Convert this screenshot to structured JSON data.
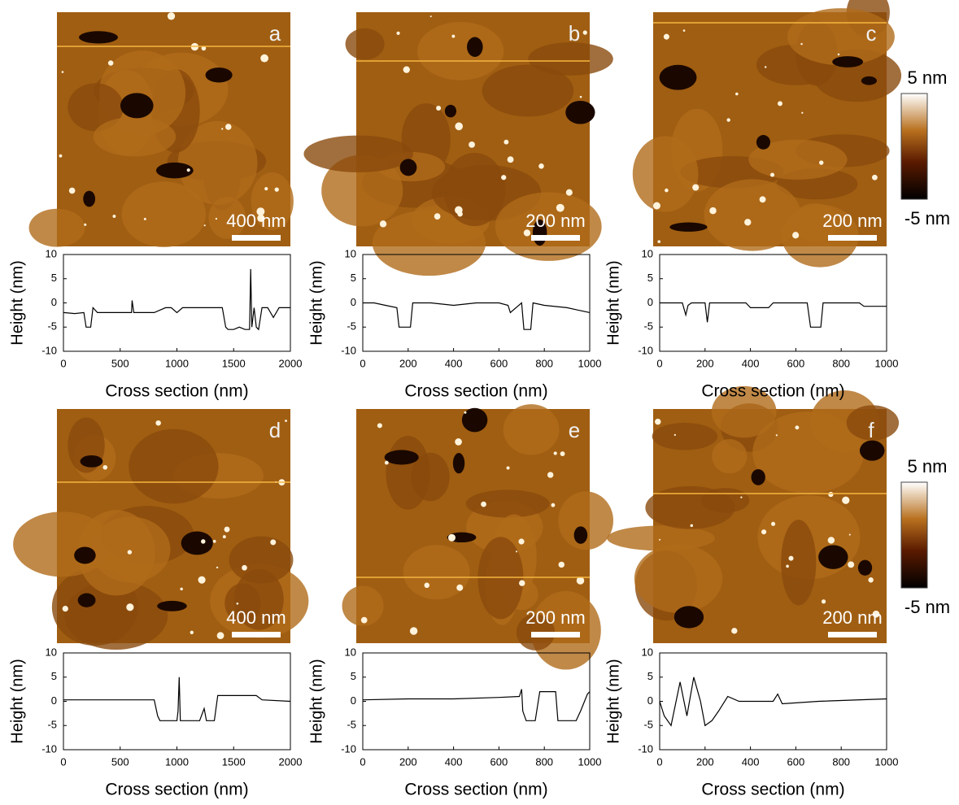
{
  "images": [
    {
      "label": "a",
      "scale_bar": "400 nm"
    },
    {
      "label": "b",
      "scale_bar": "200 nm"
    },
    {
      "label": "c",
      "scale_bar": "200 nm"
    },
    {
      "label": "d",
      "scale_bar": "400 nm"
    },
    {
      "label": "e",
      "scale_bar": "200 nm"
    },
    {
      "label": "f",
      "scale_bar": "200 nm"
    }
  ],
  "colorbars": [
    {
      "max_label": "5 nm",
      "min_label": "-5 nm"
    },
    {
      "max_label": "5 nm",
      "min_label": "-5 nm"
    }
  ],
  "chart_data": [
    {
      "type": "line",
      "xlabel": "Cross section (nm)",
      "ylabel": "Height (nm)",
      "xlim": [
        0,
        2000
      ],
      "ylim": [
        -10,
        10
      ],
      "xticks": [
        0,
        500,
        1000,
        1500,
        2000
      ],
      "yticks": [
        -10,
        -5,
        0,
        5,
        10
      ],
      "x": [
        0,
        100,
        180,
        200,
        240,
        260,
        300,
        500,
        600,
        605,
        620,
        800,
        900,
        950,
        1000,
        1050,
        1100,
        1200,
        1300,
        1400,
        1430,
        1450,
        1500,
        1550,
        1600,
        1640,
        1650,
        1660,
        1680,
        1700,
        1720,
        1750,
        1800,
        1850,
        1900,
        2000
      ],
      "series": [
        {
          "color": "#000000",
          "values": [
            -2,
            -2.2,
            -2,
            -5,
            -5,
            -1,
            -2,
            -2,
            -2,
            0.5,
            -2,
            -2,
            -1,
            -1,
            -2,
            -1,
            -1,
            -1,
            -1,
            -1,
            -5,
            -5.5,
            -5.5,
            -5,
            -5.5,
            -5.5,
            7,
            -5,
            -1,
            -5,
            -5.5,
            -1,
            -1,
            -3,
            -1,
            -1
          ]
        }
      ]
    },
    {
      "type": "line",
      "xlabel": "Cross section (nm)",
      "ylabel": "Height (nm)",
      "xlim": [
        0,
        1000
      ],
      "ylim": [
        -10,
        10
      ],
      "xticks": [
        0,
        200,
        400,
        600,
        800,
        1000
      ],
      "yticks": [
        -10,
        -5,
        0,
        5,
        10
      ],
      "x": [
        0,
        50,
        100,
        150,
        160,
        210,
        220,
        300,
        400,
        500,
        600,
        640,
        650,
        700,
        710,
        740,
        750,
        800,
        900,
        950,
        1000
      ],
      "series": [
        {
          "color": "#000000",
          "values": [
            0,
            0,
            -0.5,
            -1,
            -5,
            -5,
            0,
            0,
            -0.5,
            0,
            0,
            -0.5,
            -2,
            0,
            -5.5,
            -5.5,
            0,
            -0.5,
            -1,
            -1.5,
            -2
          ]
        }
      ]
    },
    {
      "type": "line",
      "xlabel": "Cross section (nm)",
      "ylabel": "Height (nm)",
      "xlim": [
        0,
        1000
      ],
      "ylim": [
        -10,
        10
      ],
      "xticks": [
        0,
        200,
        400,
        600,
        800,
        1000
      ],
      "yticks": [
        -10,
        -5,
        0,
        5,
        10
      ],
      "x": [
        0,
        100,
        115,
        125,
        140,
        200,
        210,
        220,
        300,
        380,
        400,
        480,
        500,
        600,
        650,
        665,
        710,
        720,
        800,
        880,
        900,
        1000
      ],
      "series": [
        {
          "color": "#000000",
          "values": [
            0,
            0,
            -2.5,
            -0.5,
            0,
            0,
            -4,
            0,
            0,
            0,
            -1,
            -1,
            0,
            0,
            0,
            -5,
            -5,
            0,
            0,
            0,
            -0.7,
            -0.7
          ]
        }
      ]
    },
    {
      "type": "line",
      "xlabel": "Cross section (nm)",
      "ylabel": "Height (nm)",
      "xlim": [
        0,
        2000
      ],
      "ylim": [
        -10,
        10
      ],
      "xticks": [
        0,
        500,
        1000,
        1500,
        2000
      ],
      "yticks": [
        -10,
        -5,
        0,
        5,
        10
      ],
      "x": [
        0,
        400,
        800,
        830,
        850,
        1000,
        1010,
        1020,
        1030,
        1050,
        1200,
        1240,
        1260,
        1300,
        1330,
        1360,
        1500,
        1700,
        1750,
        2000
      ],
      "series": [
        {
          "color": "#000000",
          "values": [
            0.3,
            0.3,
            0.3,
            -3,
            -4,
            -4,
            -2,
            5,
            -4,
            -4,
            -4,
            -1.5,
            -4,
            -4,
            -4,
            1.2,
            1.2,
            1.2,
            0.3,
            0
          ]
        }
      ]
    },
    {
      "type": "line",
      "xlabel": "Cross section (nm)",
      "ylabel": "Height (nm)",
      "xlim": [
        0,
        1000
      ],
      "ylim": [
        -10,
        10
      ],
      "xticks": [
        0,
        200,
        400,
        600,
        800,
        1000
      ],
      "yticks": [
        -10,
        -5,
        0,
        5,
        10
      ],
      "x": [
        0,
        200,
        400,
        600,
        690,
        700,
        705,
        720,
        760,
        780,
        850,
        860,
        940,
        960,
        990,
        1000
      ],
      "series": [
        {
          "color": "#000000",
          "values": [
            0.3,
            0.5,
            0.5,
            0.8,
            1,
            2.5,
            -2,
            -4,
            -4,
            2,
            2,
            -4,
            -4,
            -2,
            1.5,
            2
          ]
        }
      ]
    },
    {
      "type": "line",
      "xlabel": "Cross section (nm)",
      "ylabel": "Height (nm)",
      "xlim": [
        0,
        1000
      ],
      "ylim": [
        -10,
        10
      ],
      "xticks": [
        0,
        200,
        400,
        600,
        800,
        1000
      ],
      "yticks": [
        -10,
        -5,
        0,
        5,
        10
      ],
      "x": [
        0,
        20,
        50,
        90,
        120,
        150,
        180,
        200,
        230,
        260,
        300,
        350,
        500,
        520,
        540,
        700,
        1000
      ],
      "series": [
        {
          "color": "#000000",
          "values": [
            0,
            -3,
            -5,
            4,
            -3,
            5,
            0,
            -5,
            -4,
            -2,
            1,
            0,
            0,
            1.5,
            -0.5,
            0,
            0.5
          ]
        }
      ]
    }
  ]
}
